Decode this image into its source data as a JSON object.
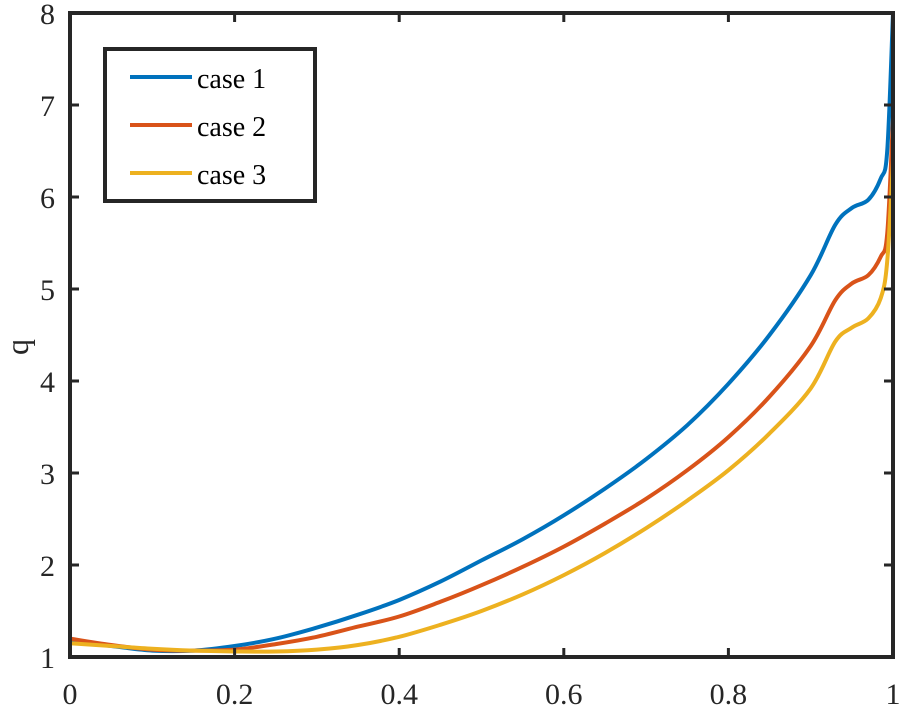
{
  "chart_data": {
    "type": "line",
    "title": "",
    "xlabel": "",
    "ylabel": "q",
    "xlim": [
      0,
      1
    ],
    "ylim": [
      1,
      8
    ],
    "xticks": [
      0,
      0.2,
      0.4,
      0.6,
      0.8,
      1
    ],
    "xtick_labels": [
      "0",
      "0.2",
      "0.4",
      "0.6",
      "0.8",
      "1"
    ],
    "yticks": [
      1,
      2,
      3,
      4,
      5,
      6,
      7,
      8
    ],
    "ytick_labels": [
      "1",
      "2",
      "3",
      "4",
      "5",
      "6",
      "7",
      "8"
    ],
    "grid": false,
    "legend_position": "upper left",
    "x": [
      0,
      0.05,
      0.1,
      0.15,
      0.2,
      0.25,
      0.3,
      0.35,
      0.4,
      0.45,
      0.5,
      0.55,
      0.6,
      0.65,
      0.7,
      0.75,
      0.8,
      0.85,
      0.9,
      0.93,
      0.95,
      0.97,
      0.985,
      0.993,
      1.0
    ],
    "series": [
      {
        "name": "case 1",
        "color": "#0072BD",
        "values": [
          1.18,
          1.12,
          1.07,
          1.07,
          1.12,
          1.2,
          1.32,
          1.46,
          1.62,
          1.82,
          2.05,
          2.28,
          2.54,
          2.83,
          3.15,
          3.52,
          3.97,
          4.5,
          5.15,
          5.7,
          5.88,
          5.97,
          6.2,
          6.5,
          8.0
        ]
      },
      {
        "name": "case 2",
        "color": "#D95319",
        "values": [
          1.2,
          1.13,
          1.08,
          1.07,
          1.08,
          1.14,
          1.22,
          1.33,
          1.44,
          1.6,
          1.78,
          1.98,
          2.2,
          2.45,
          2.72,
          3.03,
          3.39,
          3.83,
          4.38,
          4.88,
          5.06,
          5.15,
          5.35,
          5.6,
          6.85
        ]
      },
      {
        "name": "case 3",
        "color": "#EDB120",
        "values": [
          1.15,
          1.12,
          1.09,
          1.07,
          1.06,
          1.06,
          1.08,
          1.13,
          1.22,
          1.35,
          1.5,
          1.68,
          1.89,
          2.13,
          2.4,
          2.7,
          3.03,
          3.43,
          3.92,
          4.43,
          4.58,
          4.68,
          4.9,
          5.3,
          6.4
        ]
      }
    ]
  },
  "legend": {
    "items": [
      {
        "label": "case 1",
        "color": "#0072BD"
      },
      {
        "label": "case 2",
        "color": "#D95319"
      },
      {
        "label": "case 3",
        "color": "#EDB120"
      }
    ]
  },
  "axes": {
    "ylabel": "q"
  }
}
